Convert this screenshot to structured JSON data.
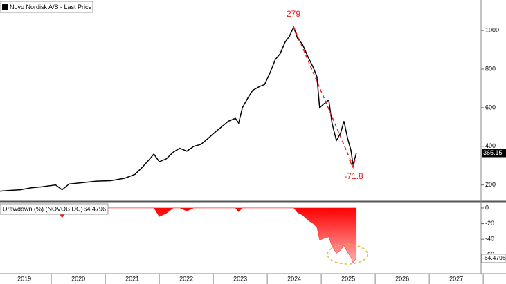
{
  "chart_data": [
    {
      "type": "line",
      "title": "Novo Nordisk A/S - Last Price",
      "x": [
        2019.05,
        2019.24,
        2019.43,
        2019.63,
        2019.82,
        2020.08,
        2020.2,
        2020.33,
        2020.59,
        2020.84,
        2021.1,
        2021.36,
        2021.55,
        2021.68,
        2021.81,
        2021.9,
        2022.0,
        2022.13,
        2022.26,
        2022.38,
        2022.51,
        2022.64,
        2022.77,
        2022.9,
        2023.02,
        2023.15,
        2023.28,
        2023.41,
        2023.47,
        2023.54,
        2023.64,
        2023.73,
        2023.86,
        2023.95,
        2024.05,
        2024.15,
        2024.24,
        2024.33,
        2024.41,
        2024.49,
        2024.56,
        2024.65,
        2024.76,
        2024.85,
        2024.92,
        2024.97,
        2025.05,
        2025.14,
        2025.2,
        2025.28,
        2025.36,
        2025.42,
        2025.49,
        2025.55,
        2025.59,
        2025.63,
        2025.65
      ],
      "series": [
        {
          "name": "Novo Nordisk A/S - Last Price",
          "color": "#000000",
          "values": [
            168,
            172,
            175,
            185,
            190,
            200,
            175,
            205,
            212,
            220,
            222,
            235,
            255,
            290,
            330,
            360,
            320,
            335,
            370,
            390,
            375,
            400,
            410,
            440,
            470,
            500,
            530,
            545,
            520,
            600,
            650,
            690,
            710,
            720,
            780,
            850,
            880,
            940,
            970,
            1018,
            960,
            930,
            860,
            810,
            760,
            600,
            620,
            640,
            520,
            430,
            470,
            530,
            440,
            380,
            304,
            345,
            365.15
          ]
        }
      ],
      "xlim": [
        2019.05,
        2027.96
      ],
      "ylim": [
        120,
        1140
      ],
      "yticks": [
        200,
        400,
        600,
        800,
        1000
      ],
      "annotations": [
        {
          "text": "279"
        },
        {
          "text": "-71.8"
        }
      ]
    },
    {
      "type": "area",
      "x": [
        2019.05,
        2019.24,
        2019.43,
        2019.63,
        2019.82,
        2020.08,
        2020.2,
        2020.33,
        2020.59,
        2020.84,
        2021.1,
        2021.36,
        2021.55,
        2021.68,
        2021.81,
        2021.9,
        2022.0,
        2022.13,
        2022.26,
        2022.38,
        2022.51,
        2022.64,
        2022.77,
        2022.9,
        2023.02,
        2023.15,
        2023.28,
        2023.41,
        2023.47,
        2023.54,
        2023.64,
        2023.73,
        2023.86,
        2023.95,
        2024.05,
        2024.15,
        2024.24,
        2024.33,
        2024.41,
        2024.49,
        2024.56,
        2024.65,
        2024.76,
        2024.85,
        2024.92,
        2024.97,
        2025.05,
        2025.14,
        2025.2,
        2025.28,
        2025.36,
        2025.42,
        2025.49,
        2025.55,
        2025.59,
        2025.63,
        2025.65
      ],
      "series": [
        {
          "name": "Drawdown (%) (NOVOB DC)",
          "color": "#ff1a1a",
          "values": [
            0,
            0,
            0,
            0,
            0,
            0,
            -12.5,
            0,
            0,
            0,
            0,
            0,
            0,
            0,
            0,
            0,
            -11,
            -7,
            0,
            0,
            -4,
            0,
            0,
            0,
            0,
            0,
            0,
            0,
            -5,
            0,
            0,
            0,
            0,
            0,
            0,
            0,
            0,
            0,
            0,
            0,
            -6,
            -9,
            -16,
            -20,
            -25,
            -41,
            -39,
            -37,
            -49,
            -58,
            -54,
            -48,
            -57,
            -63,
            -70,
            -66,
            -64.4796
          ]
        }
      ],
      "xlim": [
        2019.05,
        2027.96
      ],
      "ylim": [
        -84,
        7
      ],
      "yticks": [
        0,
        -20,
        -40,
        -60
      ],
      "xticks": [
        {
          "value": 2019.5,
          "label": "2019"
        },
        {
          "value": 2020.5,
          "label": "2020"
        },
        {
          "value": 2021.5,
          "label": "2021"
        },
        {
          "value": 2022.5,
          "label": "2022"
        },
        {
          "value": 2023.5,
          "label": "2023"
        },
        {
          "value": 2024.5,
          "label": "2024"
        },
        {
          "value": 2025.5,
          "label": "2025"
        },
        {
          "value": 2026.5,
          "label": "2026"
        },
        {
          "value": 2027.5,
          "label": "2027"
        }
      ]
    }
  ]
}
